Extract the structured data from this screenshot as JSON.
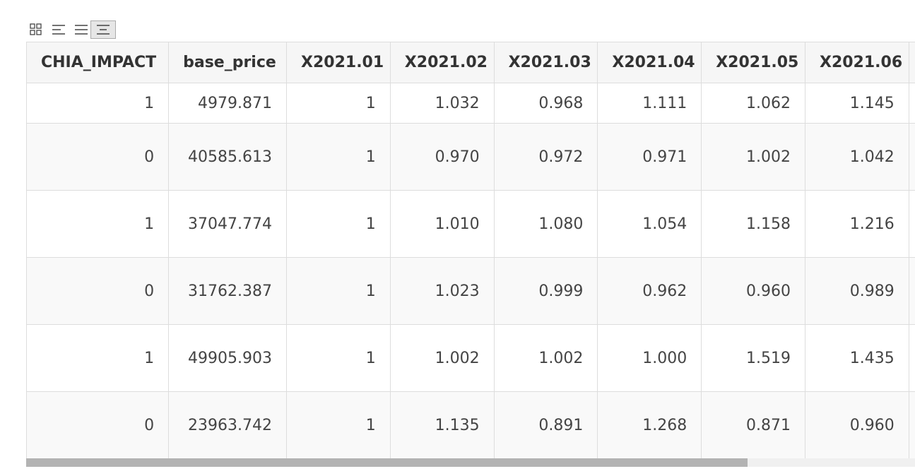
{
  "toolbar": {
    "buttons": [
      {
        "icon": "grid-icon"
      },
      {
        "icon": "align-left-icon"
      },
      {
        "icon": "align-justify-icon"
      },
      {
        "icon": "align-center-icon",
        "active": true
      }
    ]
  },
  "table": {
    "columns": [
      "CHIA_IMPACT",
      "base_price",
      "X2021.01",
      "X2021.02",
      "X2021.03",
      "X2021.04",
      "X2021.05",
      "X2021.06",
      ""
    ],
    "rows": [
      [
        "1",
        "4979.871",
        "1",
        "1.032",
        "0.968",
        "1.111",
        "1.062",
        "1.145",
        ""
      ],
      [
        "0",
        "40585.613",
        "1",
        "0.970",
        "0.972",
        "0.971",
        "1.002",
        "1.042",
        ""
      ],
      [
        "1",
        "37047.774",
        "1",
        "1.010",
        "1.080",
        "1.054",
        "1.158",
        "1.216",
        ""
      ],
      [
        "0",
        "31762.387",
        "1",
        "1.023",
        "0.999",
        "0.962",
        "0.960",
        "0.989",
        ""
      ],
      [
        "1",
        "49905.903",
        "1",
        "1.002",
        "1.002",
        "1.000",
        "1.519",
        "1.435",
        ""
      ],
      [
        "0",
        "23963.742",
        "1",
        "1.135",
        "0.891",
        "1.268",
        "0.871",
        "0.960",
        ""
      ]
    ]
  },
  "scrollbar": {
    "horizontal_position": 0.0,
    "visible_fraction": 0.81
  }
}
